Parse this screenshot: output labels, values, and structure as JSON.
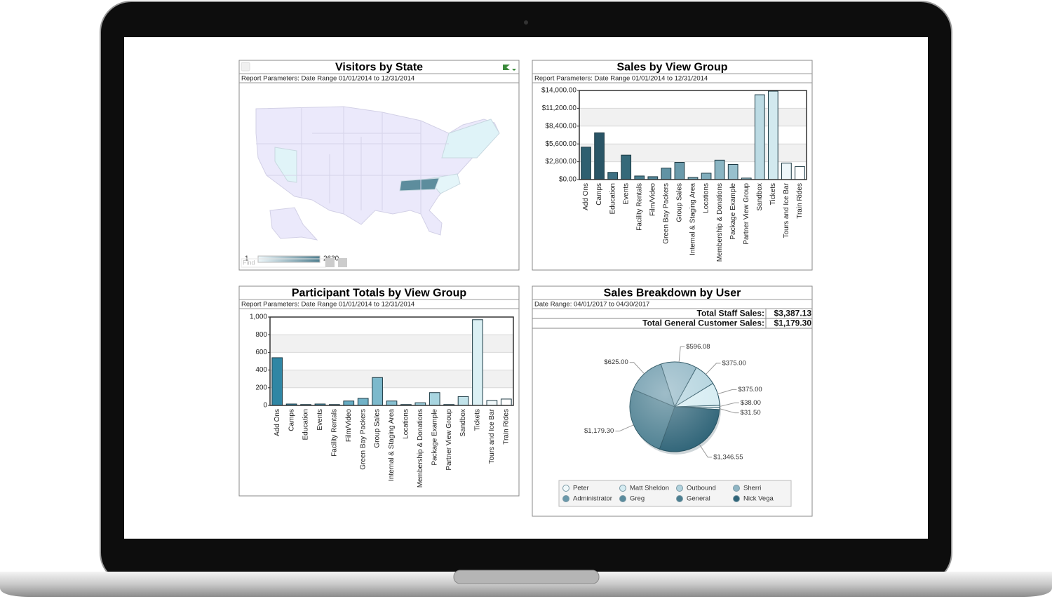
{
  "chart_data": [
    {
      "type": "map",
      "title": "Visitors by State",
      "subtitle": "Report Parameters: Date Range 01/01/2014 to 12/31/2014",
      "legend_range": [
        1,
        2630
      ],
      "legend_colors": [
        "#eef7fa",
        "#4f7f90"
      ],
      "search_placeholder": "Find"
    },
    {
      "type": "bar",
      "title": "Sales by View Group",
      "subtitle": "Report Parameters: Date Range 01/01/2014 to 12/31/2014",
      "categories": [
        "Add Ons",
        "Camps",
        "Education",
        "Events",
        "Facility Rentals",
        "Film/Video",
        "Green Bay Packers",
        "Group Sales",
        "Internal & Staging Area",
        "Locations",
        "Membership & Donations",
        "Package Example",
        "Partner View Group",
        "Sandbox",
        "Tickets",
        "Tours and Ice Bar",
        "Train Rides"
      ],
      "values": [
        5100,
        7350,
        1130,
        3840,
        560,
        450,
        1800,
        2700,
        340,
        1000,
        3050,
        2370,
        230,
        13330,
        13890,
        2600,
        2030
      ],
      "colors": [
        "#2e5f70",
        "#2a5566",
        "#3d7083",
        "#356979",
        "#4a7f90",
        "#55889a",
        "#6193a4",
        "#6a9aab",
        "#75a4b3",
        "#80adbc",
        "#8ab5c3",
        "#98c0cd",
        "#a7cbd6",
        "#bcdbe4",
        "#d2e9ef",
        "#eef7fa",
        "#ffffff"
      ],
      "ylim": [
        0,
        14000
      ],
      "yticks": [
        {
          "value": 0,
          "label": "$0.00"
        },
        {
          "value": 2800,
          "label": "$2,800.00"
        },
        {
          "value": 5600,
          "label": "$5,600.00"
        },
        {
          "value": 8400,
          "label": "$8,400.00"
        },
        {
          "value": 11200,
          "label": "$11,200.00"
        },
        {
          "value": 14000,
          "label": "$14,000.00"
        }
      ],
      "grid": true
    },
    {
      "type": "bar",
      "title": "Participant Totals by View Group",
      "subtitle": "Report Parameters: Date Range 01/01/2014 to 12/31/2014",
      "categories": [
        "Add Ons",
        "Camps",
        "Education",
        "Events",
        "Facility Rentals",
        "Film/Video",
        "Green Bay Packers",
        "Group Sales",
        "Internal & Staging Area",
        "Locations",
        "Membership & Donations",
        "Package Example",
        "Partner View Group",
        "Sandbox",
        "Tickets",
        "Tours and Ice Bar",
        "Train Rides"
      ],
      "values": [
        540,
        16,
        10,
        16,
        10,
        50,
        80,
        315,
        50,
        10,
        30,
        145,
        10,
        100,
        970,
        56,
        72
      ],
      "colors": [
        "#2f86a4",
        "#3a8ead",
        "#4596b3",
        "#509db8",
        "#5ba4bd",
        "#66abc2",
        "#71b2c7",
        "#7cb9cc",
        "#87c0d1",
        "#92c7d6",
        "#9dcedb",
        "#a8d5e0",
        "#b3dce5",
        "#c2e3ea",
        "#dbf0f4",
        "#f1f9fb",
        "#ffffff"
      ],
      "ylim": [
        0,
        1000
      ],
      "yticks": [
        0,
        200,
        400,
        600,
        800,
        {
          "value": 1000,
          "label": "1,000"
        }
      ],
      "grid": true
    },
    {
      "type": "pie",
      "title": "Sales Breakdown by User",
      "subtitle": "Date Range: 04/01/2017 to 04/30/2017",
      "summary": [
        {
          "label": "Total Staff Sales:",
          "value": "$3,387.13"
        },
        {
          "label": "Total General Customer Sales:",
          "value": "$1,179.30"
        }
      ],
      "values": [
        596.08,
        375,
        375,
        38,
        31.5,
        1346.55,
        1179.3,
        625
      ],
      "value_labels": [
        "$596.08",
        "$375.00",
        "$375.00",
        "$38.00",
        "$31.50",
        "$1,346.55",
        "$1,179.30",
        "$625.00"
      ],
      "colors": [
        "#8fb5c4",
        "#b1d2dd",
        "#d5ecf2",
        "#e6f3f6",
        "#f0f8fa",
        "#2f6478",
        "#4b7e90",
        "#6a98aa"
      ],
      "legend": [
        {
          "name": "Peter",
          "color": "#f0f8fa"
        },
        {
          "name": "Matt Sheldon",
          "color": "#d5ecf2"
        },
        {
          "name": "Outbound",
          "color": "#b1d2dd"
        },
        {
          "name": "Sherri",
          "color": "#8fb5c4"
        },
        {
          "name": "Administrator",
          "color": "#6a98aa"
        },
        {
          "name": "Greg",
          "color": "#5a8b9d"
        },
        {
          "name": "General",
          "color": "#4b7e90"
        },
        {
          "name": "Nick Vega",
          "color": "#2f6478"
        }
      ]
    }
  ]
}
